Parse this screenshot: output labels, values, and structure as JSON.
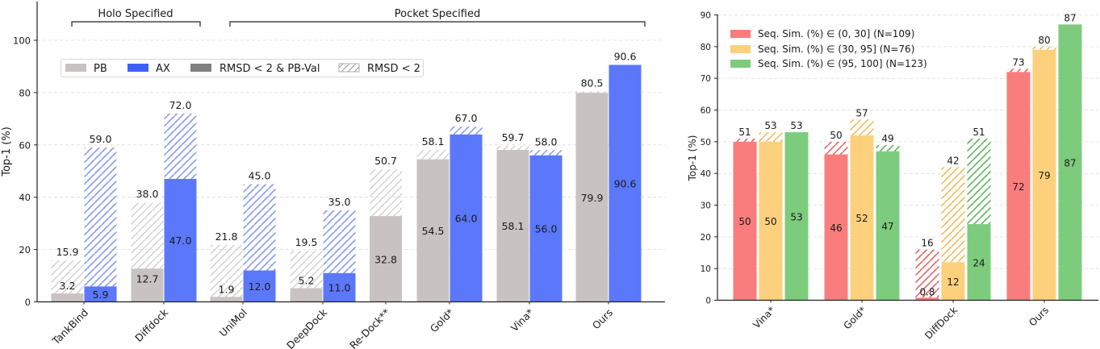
{
  "chart_data": [
    {
      "type": "bar",
      "title": "",
      "xlabel": "",
      "ylabel": "Top-1 (%)",
      "ylim": [
        0,
        110
      ],
      "yticks": [
        0,
        20,
        40,
        60,
        80,
        100
      ],
      "grid": "horizontal dashed",
      "groups": [
        {
          "label": "Holo Specified",
          "categories": [
            "TankBind",
            "Diffdock"
          ]
        },
        {
          "label": "Pocket Specified",
          "categories": [
            "UniMol",
            "DeepDock",
            "Re-Dock**",
            "Gold*",
            "Vina*",
            "Ours"
          ]
        }
      ],
      "categories": [
        "TankBind",
        "Diffdock",
        "UniMol",
        "DeepDock",
        "Re-Dock**",
        "Gold*",
        "Vina*",
        "Ours"
      ],
      "legend": {
        "position": "upper left (horizontal)",
        "entries": [
          "PB",
          "AX",
          "RMSD < 2 & PB-Val",
          "RMSD < 2"
        ]
      },
      "series": [
        {
          "name": "PB",
          "color": "#c8c2c2",
          "rmsd_lt2_pbval": [
            3.2,
            12.7,
            1.9,
            5.2,
            32.8,
            54.5,
            58.1,
            79.9
          ],
          "rmsd_lt2": [
            15.9,
            38.0,
            21.8,
            19.5,
            50.7,
            58.1,
            59.7,
            80.5
          ]
        },
        {
          "name": "AX",
          "color": "#5b78fb",
          "rmsd_lt2_pbval": [
            5.9,
            47.0,
            12.0,
            11.0,
            null,
            64.0,
            56.0,
            90.6
          ],
          "rmsd_lt2": [
            59.0,
            72.0,
            45.0,
            35.0,
            null,
            67.0,
            58.0,
            90.6
          ]
        }
      ]
    },
    {
      "type": "bar",
      "title": "",
      "xlabel": "",
      "ylabel": "Top-1 (%)",
      "ylim": [
        0,
        90
      ],
      "yticks": [
        0,
        10,
        20,
        30,
        40,
        50,
        60,
        70,
        80,
        90
      ],
      "grid": "horizontal dashed",
      "categories": [
        "Vina*",
        "Gold*",
        "DiffDock",
        "Ours"
      ],
      "legend": {
        "position": "upper left",
        "entries": [
          "Seq. Sim. (%) ∈ (0, 30] (N=109)",
          "Seq. Sim. (%) ∈ (30, 95] (N=76)",
          "Seq. Sim. (%) ∈ (95, 100] (N=123)"
        ]
      },
      "series": [
        {
          "name": "Seq. Sim. (%) ∈ (0, 30] (N=109)",
          "color": "#f97d7d",
          "solid": [
            50,
            46,
            0.8,
            72
          ],
          "hatched_total": [
            51,
            50,
            16,
            73
          ]
        },
        {
          "name": "Seq. Sim. (%) ∈ (30, 95] (N=76)",
          "color": "#fcd07c",
          "solid": [
            50,
            52,
            12,
            79
          ],
          "hatched_total": [
            53,
            57,
            42,
            80
          ]
        },
        {
          "name": "Seq. Sim. (%) ∈ (95, 100] (N=123)",
          "color": "#7dcc7d",
          "solid": [
            53,
            47,
            24,
            87
          ],
          "hatched_total": [
            53,
            49,
            51,
            87
          ]
        }
      ]
    }
  ],
  "left": {
    "ylabel": "Top-1 (%)",
    "yticks": [
      "0",
      "20",
      "40",
      "60",
      "80",
      "100"
    ],
    "bracket_holo": "Holo Specified",
    "bracket_pocket": "Pocket Specified",
    "legend": {
      "pb": "PB",
      "ax": "AX",
      "solid": "RMSD < 2 & PB-Val",
      "hatch": "RMSD < 2"
    },
    "xlabels": [
      "TankBind",
      "Diffdock",
      "UniMol",
      "DeepDock",
      "Re-Dock**",
      "Gold*",
      "Vina*",
      "Ours"
    ]
  },
  "right": {
    "ylabel": "Top-1 (%)",
    "yticks": [
      "0",
      "10",
      "20",
      "30",
      "40",
      "50",
      "60",
      "70",
      "80",
      "90"
    ],
    "legend": [
      "Seq. Sim. (%) ∈ (0, 30] (N=109)",
      "Seq. Sim. (%) ∈ (30, 95] (N=76)",
      "Seq. Sim. (%) ∈ (95, 100] (N=123)"
    ],
    "xlabels": [
      "Vina*",
      "Gold*",
      "DiffDock",
      "Ours"
    ]
  },
  "colors": {
    "pb": "#c8c2c2",
    "ax": "#5b78fb",
    "ax_hatch": "#8a9ef0",
    "pb_hatch": "#d0d0d0",
    "legend_solid": "#808080",
    "red": "#f97d7d",
    "orange": "#fcd07c",
    "green": "#7dcc7d",
    "red_hatch": "#e35d5d",
    "orange_hatch": "#f5b84a",
    "green_hatch": "#4fb04f"
  }
}
